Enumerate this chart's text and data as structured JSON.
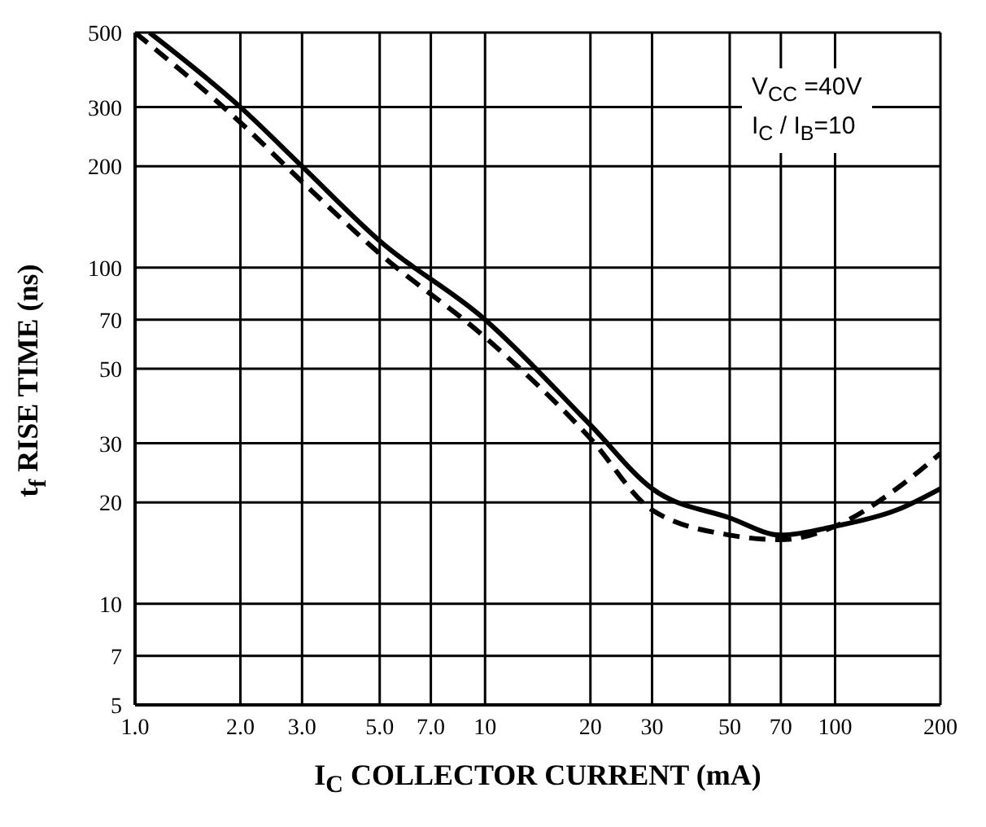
{
  "chart_data": {
    "type": "line",
    "xlabel": "I$_{C}$ COLLECTOR CURRENT (mA)",
    "ylabel": "t$_{f}$ RISE TIME (ns)",
    "log": "xy",
    "grid": true,
    "marker": "none",
    "xlim": [
      1,
      200
    ],
    "ylim": [
      5,
      500
    ],
    "xticks": [
      {
        "value": 1,
        "label": "1.0"
      },
      {
        "value": 2,
        "label": "2.0"
      },
      {
        "value": 3,
        "label": "3.0"
      },
      {
        "value": 5,
        "label": "5.0"
      },
      {
        "value": 7,
        "label": "7.0"
      },
      10,
      20,
      30,
      50,
      70,
      100,
      200
    ],
    "yticks": [
      5,
      7,
      10,
      20,
      30,
      50,
      70,
      100,
      200,
      300,
      500
    ],
    "annotations": [
      "V$_{CC}$ =40V",
      "I$_{C}$ / I$_{B}$=10"
    ],
    "series": [
      {
        "color": "#000000",
        "line_style": "solid",
        "x": [
          1.1,
          2,
          3,
          5,
          10,
          20,
          30,
          50,
          70,
          100,
          150,
          200
        ],
        "values": [
          500,
          300,
          200,
          120,
          70,
          34,
          22,
          18,
          16,
          17,
          19,
          22
        ]
      },
      {
        "color": "#000000",
        "line_style": "dashed",
        "x": [
          1,
          2,
          3,
          5,
          10,
          20,
          30,
          50,
          70,
          100,
          150,
          200
        ],
        "values": [
          500,
          270,
          180,
          110,
          62,
          31,
          19,
          16,
          15.5,
          17,
          22,
          28
        ]
      }
    ]
  }
}
